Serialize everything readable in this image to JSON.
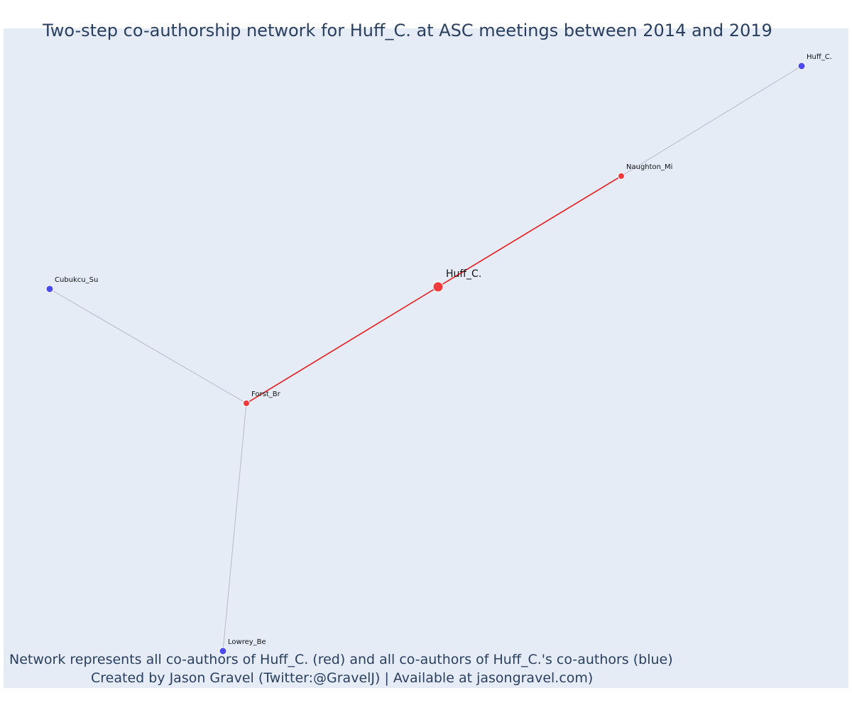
{
  "title": "Two-step co-authorship network for Huff_C. at ASC meetings between 2014 and 2019",
  "caption": {
    "line1": "Network represents all co-authors of Huff_C. (red) and all co-authors of Huff_C.'s co-authors (blue)",
    "line2": "Created by Jason Gravel (Twitter:@GravelJ) | Available at jasongravel.com)"
  },
  "colors": {
    "background": "#e5ecf6",
    "focal": "#ef3b3b",
    "first_step": "#ef3b3b",
    "second_step": "#4a4aed",
    "focal_edge": "#e81c1c",
    "second_edge": "#b8b8c8",
    "text": "#2a3f5f"
  },
  "chart_data": {
    "type": "network",
    "nodes": [
      {
        "id": "focal",
        "label": "Huff_C.",
        "group": "focal",
        "x": 0.0,
        "y": 0.0
      },
      {
        "id": "naughton",
        "label": "Naughton_Mi",
        "group": "first_step",
        "x": 0.516,
        "y": 0.312
      },
      {
        "id": "forst",
        "label": "Forst_Br",
        "group": "first_step",
        "x": -0.54,
        "y": -0.328
      },
      {
        "id": "huffc2",
        "label": "Huff_C.",
        "group": "second_step",
        "x": 1.024,
        "y": 0.622
      },
      {
        "id": "cubukcu",
        "label": "Cubukcu_Su",
        "group": "second_step",
        "x": -1.094,
        "y": -0.006
      },
      {
        "id": "lowrey",
        "label": "Lowrey_Be",
        "group": "second_step",
        "x": -0.606,
        "y": -1.026
      }
    ],
    "edges": [
      {
        "source": "focal",
        "target": "naughton",
        "type": "focal"
      },
      {
        "source": "focal",
        "target": "forst",
        "type": "focal"
      },
      {
        "source": "naughton",
        "target": "huffc2",
        "type": "second"
      },
      {
        "source": "forst",
        "target": "cubukcu",
        "type": "second"
      },
      {
        "source": "forst",
        "target": "lowrey",
        "type": "second"
      }
    ]
  }
}
